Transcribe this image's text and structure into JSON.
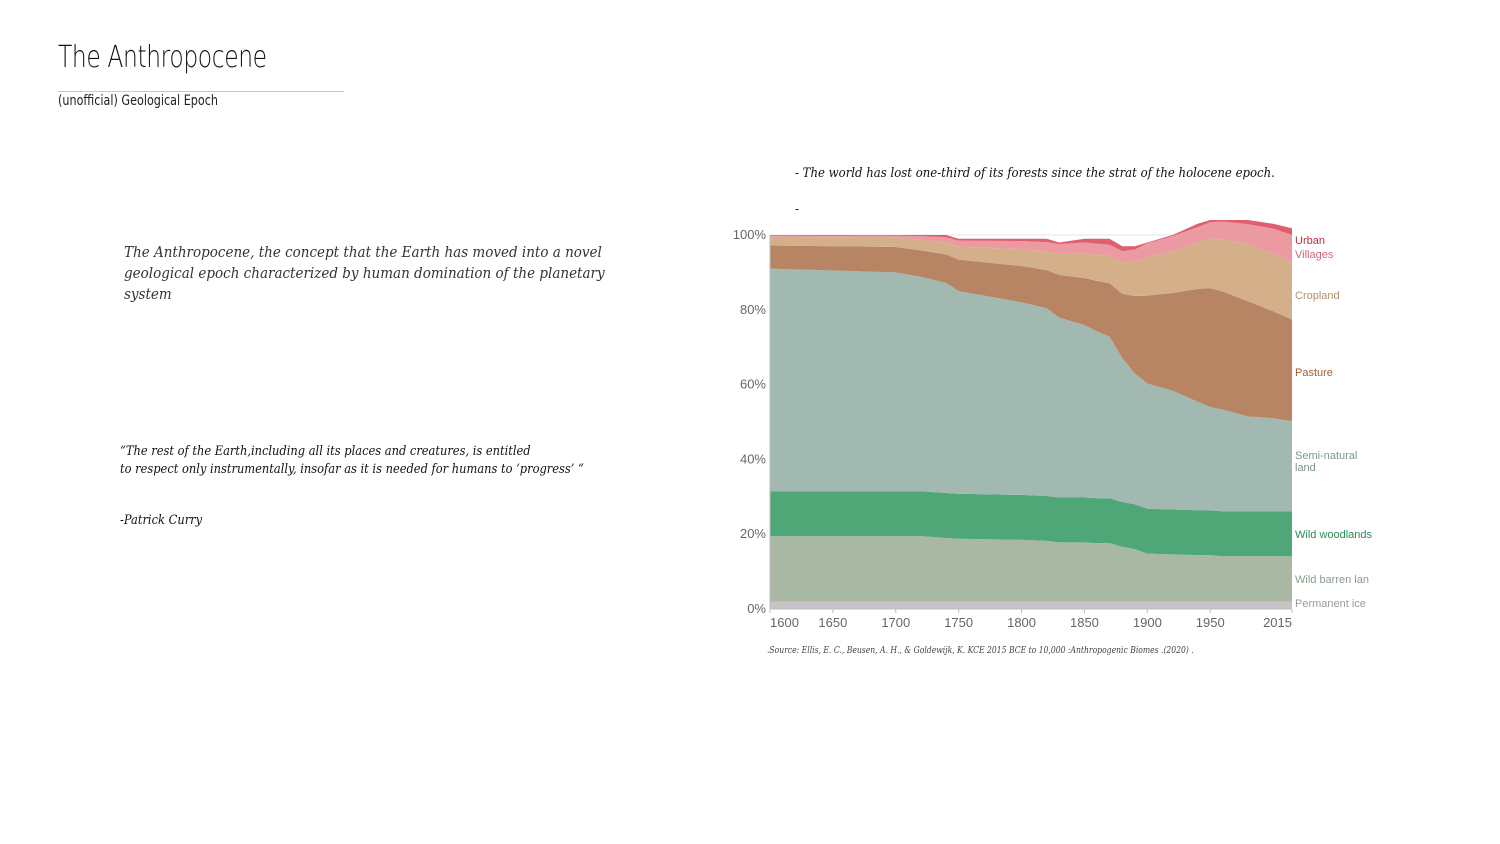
{
  "header": {
    "title": "The Anthropocene",
    "subtitle": "(unofficial) Geological Epoch"
  },
  "statement": "- The world has lost one-third of its forests since the strat of the holocene epoch.",
  "statement_dash": "-",
  "definition": "The Anthropocene, the concept that the Earth has moved into a novel geological epoch characterized by human domination of the planetary system",
  "quote": {
    "line1": "“The rest of the Earth,including all its places and creatures, is entitled",
    "line2": "to respect only instrumentally, insofar as it is needed for humans to ‘progress’ “",
    "author": "-Patrick Curry"
  },
  "source": ".Source: Ellis, E. C., Beusen, A. H., & Goldewijk, K. KCE 2015 BCE to 10,000 :Anthropogenic Biomes .(2020) .",
  "chart_data": {
    "type": "area",
    "stacked": true,
    "title": "",
    "xlabel": "",
    "ylabel": "",
    "xlim": [
      1600,
      2015
    ],
    "ylim": [
      0,
      100
    ],
    "x_ticks": [
      1600,
      1650,
      1700,
      1750,
      1800,
      1850,
      1900,
      1950,
      2015
    ],
    "y_ticks": [
      0,
      20,
      40,
      60,
      80,
      100
    ],
    "y_tick_labels": [
      "0%",
      "20%",
      "40%",
      "60%",
      "80%",
      "100%"
    ],
    "grid": true,
    "legend": "right (direct labels)",
    "x": [
      1600,
      1700,
      1720,
      1740,
      1750,
      1800,
      1820,
      1830,
      1850,
      1860,
      1870,
      1880,
      1890,
      1900,
      1920,
      1940,
      1950,
      1960,
      1980,
      2000,
      2015
    ],
    "series": [
      {
        "name": "Permanent ice",
        "color": "#c8c3c6",
        "label_color": "#9a9a9a",
        "values": [
          2,
          2,
          2,
          2,
          2,
          2,
          2,
          2,
          2,
          2,
          2,
          2,
          2,
          2,
          2,
          2,
          2,
          2,
          2,
          2,
          2
        ]
      },
      {
        "name": "Wild barren land",
        "color": "#a9b8a2",
        "label_color": "#8a9a8a",
        "values": [
          17.5,
          17.5,
          17.5,
          17,
          16.8,
          16.5,
          16.2,
          15.8,
          15.8,
          15.6,
          15.6,
          14.6,
          14,
          12.8,
          12.6,
          12.4,
          12.4,
          12.1,
          12.1,
          12.1,
          12.1
        ]
      },
      {
        "name": "Wild woodlands",
        "color": "#4fa778",
        "label_color": "#2c8a57",
        "values": [
          12,
          12,
          12,
          12,
          12,
          12,
          12,
          12,
          12,
          12,
          12,
          12,
          12,
          12,
          12,
          12,
          12,
          12,
          12,
          12,
          12
        ]
      },
      {
        "name": "Semi-natural land",
        "color": "#a1b9b0",
        "label_color": "#7a958a",
        "values": [
          59.5,
          58.5,
          57.3,
          56.2,
          54.2,
          51.5,
          50.2,
          48.1,
          46.1,
          44.6,
          43.2,
          38.5,
          35,
          33.5,
          31.8,
          29,
          27.6,
          27.2,
          25.4,
          24.9,
          24.1
        ]
      },
      {
        "name": "Pasture",
        "color": "#b78464",
        "label_color": "#a0603a",
        "values": [
          6.2,
          6.8,
          7.1,
          7.6,
          8.4,
          9.7,
          10.2,
          11.4,
          12.6,
          13.5,
          14.3,
          17.2,
          20.7,
          23.5,
          26.1,
          30.2,
          31.8,
          31.6,
          30.8,
          28.6,
          27.2
        ]
      },
      {
        "name": "Cropland",
        "color": "#d3b08a",
        "label_color": "#b0906a",
        "values": [
          2.3,
          2.5,
          2.8,
          3.2,
          3.5,
          4.5,
          5,
          5.6,
          6.5,
          7,
          7.3,
          8.4,
          9.1,
          10.2,
          11.1,
          12.4,
          13.2,
          14,
          15.2,
          15.4,
          15.3
        ]
      },
      {
        "name": "Villages",
        "color": "#eb9aa2",
        "label_color": "#d06676",
        "values": [
          0.3,
          0.5,
          1,
          1.4,
          1.6,
          2.2,
          2.5,
          2.7,
          3,
          3,
          3,
          3,
          3.3,
          3.8,
          4.1,
          4.1,
          4.4,
          4.7,
          5.4,
          6.7,
          7.3
        ]
      },
      {
        "name": "Urban",
        "color": "#df5f6e",
        "label_color": "#c02b3c",
        "values": [
          0.2,
          0.2,
          0.3,
          0.6,
          0.5,
          0.6,
          0.9,
          0.4,
          1,
          1.3,
          1.6,
          1.3,
          0.9,
          0.2,
          0.3,
          0.9,
          0.6,
          0.4,
          1.1,
          1.3,
          1.8
        ]
      }
    ],
    "direct_labels": [
      "Urban",
      "Villages",
      "Cropland",
      "Pasture",
      "Semi-natural land",
      "Wild woodlands",
      "Wild barren lan",
      "Permanent ice"
    ]
  }
}
